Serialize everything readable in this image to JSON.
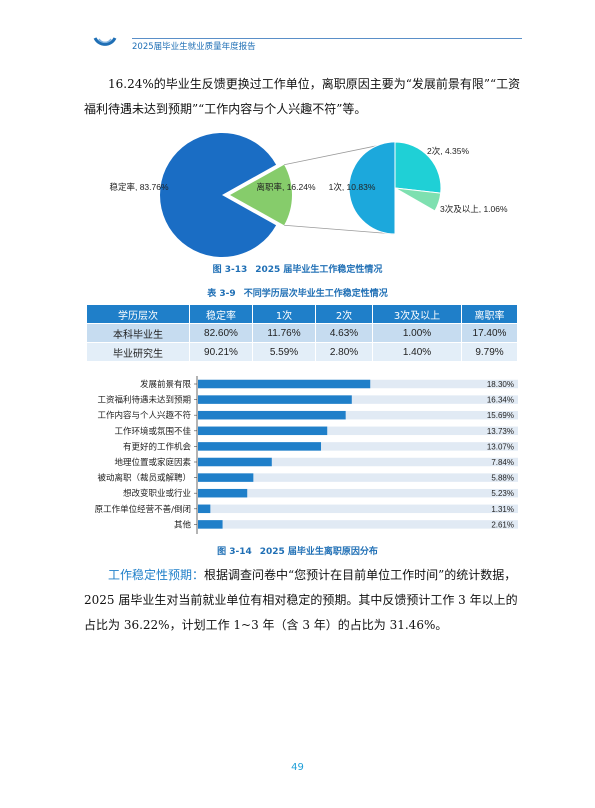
{
  "header": {
    "title": "2025届毕业生就业质量年度报告"
  },
  "para1": "16.24%的毕业生反馈更换过工作单位，离职原因主要为“发展前景有限”“工资福利待遇未达到预期”“工作内容与个人兴趣不符”等。",
  "figure1": {
    "number": "图 3-13",
    "title": "2025 届毕业生工作稳定性情况"
  },
  "table": {
    "number": "表 3-9",
    "title": "不同学历层次毕业生工作稳定性情况",
    "headers": [
      "学历层次",
      "稳定率",
      "1次",
      "2次",
      "3次及以上",
      "离职率"
    ],
    "rows": [
      [
        "本科毕业生",
        "82.60%",
        "11.76%",
        "4.63%",
        "1.00%",
        "17.40%"
      ],
      [
        "毕业研究生",
        "90.21%",
        "5.59%",
        "2.80%",
        "1.40%",
        "9.79%"
      ]
    ]
  },
  "figure2": {
    "number": "图 3-14",
    "title": "2025 届毕业生离职原因分布"
  },
  "para2": {
    "lead": "工作稳定性预期：",
    "text": "根据调查问卷中“您预计在目前单位工作时间”的统计数据，2025 届毕业生对当前就业单位有相对稳定的预期。其中反馈预计工作 3 年以上的占比为 36.22%，计划工作 1~3 年（含 3 年）的占比为 31.46%。"
  },
  "page_number": "49",
  "colors": {
    "accent": "#1f7fc9",
    "pie_stable": "#1a6dc4",
    "pie_leave": "#86cc6b",
    "pie_once": "#1ca8dc",
    "pie_twice": "#1fd0d6",
    "pie_thrice": "#7ee0b0",
    "bar_fill": "#1f7fc9",
    "bar_track": "#e1eaf4"
  },
  "chart_data": [
    {
      "type": "pie",
      "slices": [
        {
          "label": "稳定率, 83.76%",
          "name": "稳定率",
          "value": 83.76
        },
        {
          "label": "离职率, 16.24%",
          "name": "离职率",
          "value": 16.24
        }
      ],
      "sub_pie": {
        "of": "离职率",
        "slices": [
          {
            "label": "1次, 10.83%",
            "name": "1次",
            "value": 10.83
          },
          {
            "label": "2次, 4.35%",
            "name": "2次",
            "value": 4.35
          },
          {
            "label": "3次及以上, 1.06%",
            "name": "3次及以上",
            "value": 1.06
          }
        ]
      }
    },
    {
      "type": "bar",
      "orientation": "horizontal",
      "categories": [
        "发展前景有限",
        "工资福利待遇未达到预期",
        "工作内容与个人兴趣不符",
        "工作环境或氛围不佳",
        "有更好的工作机会",
        "地理位置或家庭因素",
        "被动离职（裁员或解聘）",
        "想改变职业或行业",
        "原工作单位经营不善/倒闭",
        "其他"
      ],
      "values": [
        18.3,
        16.34,
        15.69,
        13.73,
        13.07,
        7.84,
        5.88,
        5.23,
        1.31,
        2.61
      ],
      "labels": [
        "18.30%",
        "16.34%",
        "15.69%",
        "13.73%",
        "13.07%",
        "7.84%",
        "5.88%",
        "5.23%",
        "1.31%",
        "2.61%"
      ],
      "xlim": [
        0,
        34
      ]
    }
  ]
}
